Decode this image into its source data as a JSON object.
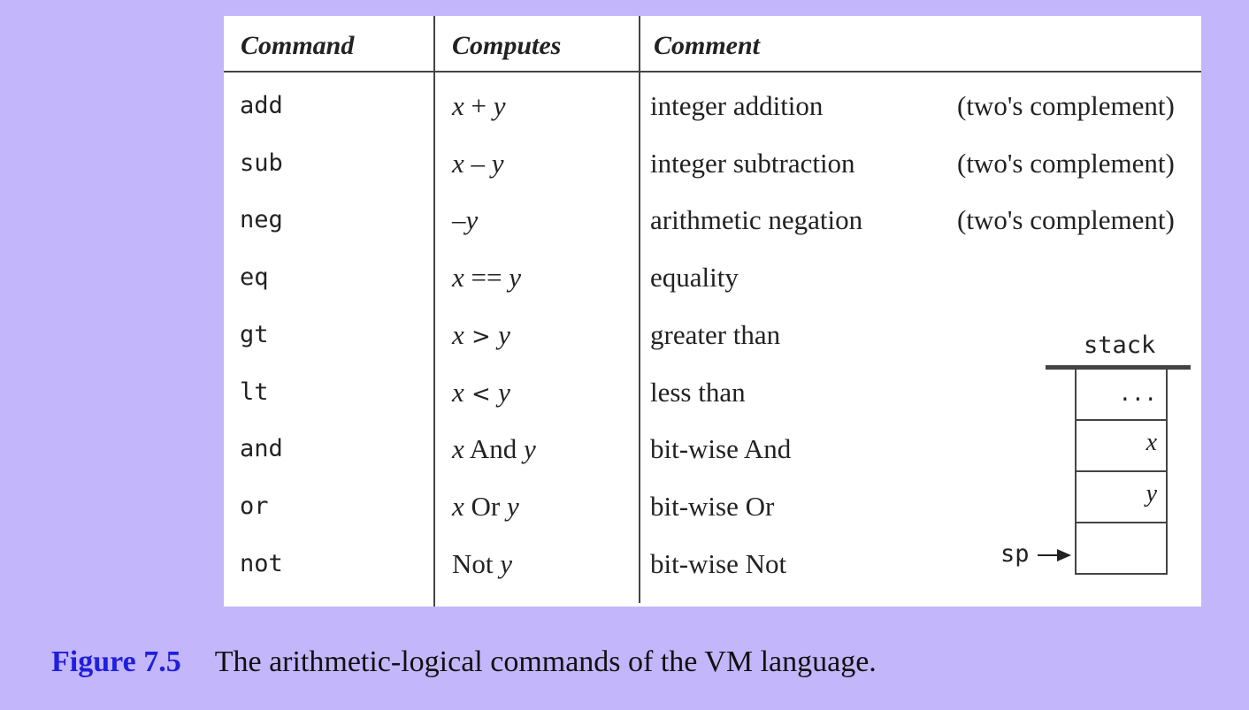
{
  "table": {
    "headers": {
      "command": "Command",
      "computes": "Computes",
      "comment": "Comment"
    },
    "rows": [
      {
        "command": "add",
        "computes": {
          "a": "x",
          "op": " + ",
          "b": "y"
        },
        "comment": "integer addition",
        "note": "(two's complement)"
      },
      {
        "command": "sub",
        "computes": {
          "a": "x",
          "op": " – ",
          "b": "y"
        },
        "comment": "integer subtraction",
        "note": "(two's complement)"
      },
      {
        "command": "neg",
        "computes": {
          "a": "",
          "op": "–",
          "b": "y"
        },
        "comment": "arithmetic negation",
        "note": "(two's complement)"
      },
      {
        "command": "eq",
        "computes": {
          "a": "x",
          "op": " == ",
          "b": "y"
        },
        "comment": "equality",
        "note": ""
      },
      {
        "command": "gt",
        "computes": {
          "a": "x",
          "op": " > ",
          "b": "y"
        },
        "comment": "greater than",
        "note": ""
      },
      {
        "command": "lt",
        "computes": {
          "a": "x",
          "op": " < ",
          "b": "y"
        },
        "comment": "less than",
        "note": ""
      },
      {
        "command": "and",
        "computes": {
          "a": "x",
          "op": " And ",
          "b": "y"
        },
        "comment": "bit-wise And",
        "note": ""
      },
      {
        "command": "or",
        "computes": {
          "a": "x",
          "op": " Or ",
          "b": "y"
        },
        "comment": "bit-wise Or",
        "note": ""
      },
      {
        "command": "not",
        "computes": {
          "a": "",
          "op": "Not ",
          "b": "y"
        },
        "comment": "bit-wise Not",
        "note": ""
      }
    ]
  },
  "stack": {
    "label": "stack",
    "cells": [
      "...",
      "x",
      "y",
      ""
    ],
    "pointer_label": "sp"
  },
  "caption": {
    "figure": "Figure 7.5",
    "text": "The arithmetic-logical commands of the VM language."
  }
}
